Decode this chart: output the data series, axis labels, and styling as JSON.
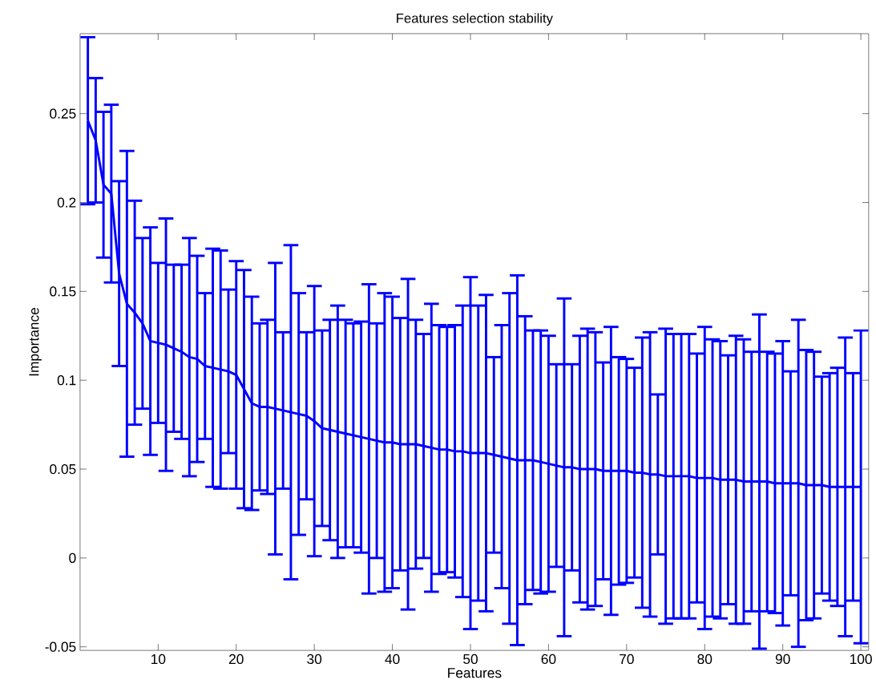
{
  "chart_data": {
    "type": "line",
    "title": "Features selection stability",
    "xlabel": "Features",
    "ylabel": "Importance",
    "x": [
      1,
      2,
      3,
      4,
      5,
      6,
      7,
      8,
      9,
      10,
      11,
      12,
      13,
      14,
      15,
      16,
      17,
      18,
      19,
      20,
      21,
      22,
      23,
      24,
      25,
      26,
      27,
      28,
      29,
      30,
      31,
      32,
      33,
      34,
      35,
      36,
      37,
      38,
      39,
      40,
      41,
      42,
      43,
      44,
      45,
      46,
      47,
      48,
      49,
      50,
      51,
      52,
      53,
      54,
      55,
      56,
      57,
      58,
      59,
      60,
      61,
      62,
      63,
      64,
      65,
      66,
      67,
      68,
      69,
      70,
      71,
      72,
      73,
      74,
      75,
      76,
      77,
      78,
      79,
      80,
      81,
      82,
      83,
      84,
      85,
      86,
      87,
      88,
      89,
      90,
      91,
      92,
      93,
      94,
      95,
      96,
      97,
      98,
      99,
      100
    ],
    "values": [
      0.246,
      0.235,
      0.21,
      0.205,
      0.16,
      0.143,
      0.138,
      0.132,
      0.122,
      0.121,
      0.12,
      0.118,
      0.116,
      0.113,
      0.112,
      0.108,
      0.107,
      0.106,
      0.105,
      0.103,
      0.095,
      0.087,
      0.085,
      0.085,
      0.084,
      0.083,
      0.082,
      0.081,
      0.08,
      0.077,
      0.073,
      0.072,
      0.071,
      0.07,
      0.069,
      0.068,
      0.067,
      0.066,
      0.065,
      0.065,
      0.064,
      0.064,
      0.064,
      0.063,
      0.062,
      0.061,
      0.061,
      0.06,
      0.06,
      0.059,
      0.059,
      0.059,
      0.058,
      0.057,
      0.056,
      0.055,
      0.055,
      0.055,
      0.054,
      0.053,
      0.052,
      0.051,
      0.051,
      0.05,
      0.05,
      0.05,
      0.049,
      0.049,
      0.049,
      0.049,
      0.048,
      0.048,
      0.047,
      0.047,
      0.046,
      0.046,
      0.046,
      0.046,
      0.045,
      0.045,
      0.045,
      0.044,
      0.044,
      0.044,
      0.043,
      0.043,
      0.043,
      0.043,
      0.042,
      0.042,
      0.042,
      0.042,
      0.041,
      0.041,
      0.041,
      0.04,
      0.04,
      0.04,
      0.04,
      0.04
    ],
    "errors": [
      0.047,
      0.035,
      0.041,
      0.05,
      0.052,
      0.086,
      0.063,
      0.048,
      0.064,
      0.045,
      0.071,
      0.047,
      0.049,
      0.067,
      0.058,
      0.041,
      0.067,
      0.067,
      0.046,
      0.064,
      0.067,
      0.06,
      0.047,
      0.049,
      0.082,
      0.044,
      0.094,
      0.068,
      0.047,
      0.076,
      0.055,
      0.062,
      0.071,
      0.064,
      0.063,
      0.065,
      0.087,
      0.066,
      0.084,
      0.082,
      0.071,
      0.093,
      0.07,
      0.063,
      0.081,
      0.07,
      0.069,
      0.071,
      0.082,
      0.099,
      0.083,
      0.089,
      0.055,
      0.074,
      0.093,
      0.104,
      0.081,
      0.073,
      0.074,
      0.072,
      0.057,
      0.095,
      0.058,
      0.075,
      0.079,
      0.077,
      0.061,
      0.081,
      0.064,
      0.063,
      0.059,
      0.076,
      0.08,
      0.045,
      0.083,
      0.08,
      0.08,
      0.08,
      0.07,
      0.085,
      0.078,
      0.078,
      0.07,
      0.081,
      0.08,
      0.073,
      0.094,
      0.073,
      0.073,
      0.08,
      0.063,
      0.092,
      0.076,
      0.075,
      0.061,
      0.064,
      0.067,
      0.084,
      0.064,
      0.088
    ],
    "color": "#0000ff",
    "marker": "none",
    "line_style": "solid",
    "grid": false,
    "xlim": [
      0,
      101
    ],
    "ylim": [
      -0.052,
      0.295
    ],
    "xticks": [
      10,
      20,
      30,
      40,
      50,
      60,
      70,
      80,
      90,
      100
    ],
    "yticks": [
      -0.05,
      0,
      0.05,
      0.1,
      0.15,
      0.2,
      0.25
    ]
  }
}
